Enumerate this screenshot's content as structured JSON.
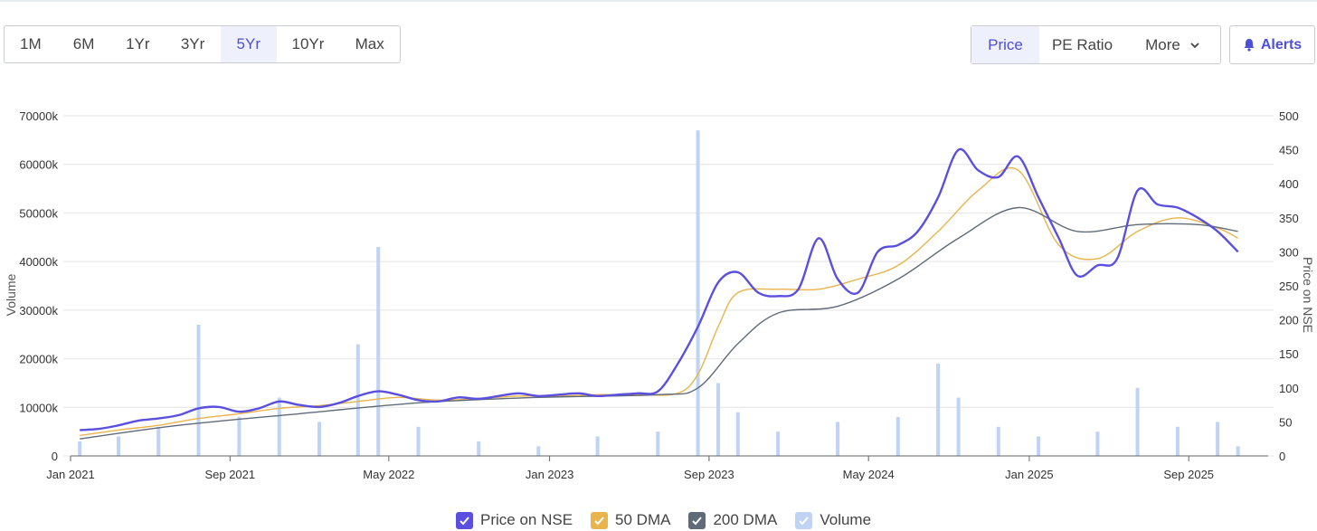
{
  "toolbar": {
    "ranges": [
      {
        "label": "1M",
        "active": false
      },
      {
        "label": "6M",
        "active": false
      },
      {
        "label": "1Yr",
        "active": false
      },
      {
        "label": "3Yr",
        "active": false
      },
      {
        "label": "5Yr",
        "active": true
      },
      {
        "label": "10Yr",
        "active": false
      },
      {
        "label": "Max",
        "active": false
      }
    ],
    "modes": [
      {
        "label": "Price",
        "active": true
      },
      {
        "label": "PE Ratio",
        "active": false
      },
      {
        "label": "More",
        "active": false
      }
    ],
    "alerts_label": "Alerts"
  },
  "legend": [
    {
      "label": "Price on NSE",
      "color": "#5b4fe0",
      "checked": true
    },
    {
      "label": "50 DMA",
      "color": "#e8b44b",
      "checked": true
    },
    {
      "label": "200 DMA",
      "color": "#5f6b79",
      "checked": true
    },
    {
      "label": "Volume",
      "color": "#bfd3f5",
      "checked": true
    }
  ],
  "chart_data": {
    "type": "line",
    "xlabel": "",
    "ylabel_left": "Volume",
    "ylabel_right": "Price on NSE",
    "x_range": [
      "2021-01-01",
      "2025-12-31"
    ],
    "x_ticks": [
      "Jan 2021",
      "Sep 2021",
      "May 2022",
      "Jan 2023",
      "Sep 2023",
      "May 2024",
      "Jan 2025",
      "Sep 2025"
    ],
    "y_left": {
      "min": 0,
      "max": 70000,
      "ticks": [
        "0",
        "10000k",
        "20000k",
        "30000k",
        "40000k",
        "50000k",
        "60000k",
        "70000k"
      ]
    },
    "y_right": {
      "min": 0,
      "max": 500,
      "ticks": [
        "0",
        "50",
        "100",
        "150",
        "200",
        "250",
        "300",
        "350",
        "400",
        "450",
        "500"
      ]
    },
    "grid": true,
    "colors": {
      "price": "#5b4fe0",
      "dma50": "#e8b44b",
      "dma200": "#5f6b79",
      "volume": "#bfd3f5"
    },
    "series": [
      {
        "name": "Price on NSE",
        "axis": "right",
        "x": [
          "2021-01",
          "2021-02",
          "2021-03",
          "2021-04",
          "2021-05",
          "2021-06",
          "2021-07",
          "2021-08",
          "2021-09",
          "2021-10",
          "2021-11",
          "2021-12",
          "2022-01",
          "2022-02",
          "2022-03",
          "2022-04",
          "2022-05",
          "2022-06",
          "2022-07",
          "2022-08",
          "2022-09",
          "2022-10",
          "2022-11",
          "2022-12",
          "2023-01",
          "2023-02",
          "2023-03",
          "2023-04",
          "2023-05",
          "2023-06",
          "2023-07",
          "2023-08",
          "2023-09",
          "2023-10",
          "2023-11",
          "2023-12",
          "2024-01",
          "2024-02",
          "2024-03",
          "2024-04",
          "2024-05",
          "2024-06",
          "2024-07",
          "2024-08",
          "2024-09",
          "2024-10",
          "2024-11",
          "2024-12",
          "2025-01",
          "2025-02",
          "2025-03",
          "2025-04",
          "2025-05",
          "2025-06",
          "2025-07",
          "2025-08",
          "2025-09",
          "2025-10",
          "2025-11"
        ],
        "values": [
          38,
          40,
          45,
          52,
          55,
          60,
          70,
          72,
          65,
          70,
          80,
          75,
          72,
          78,
          88,
          95,
          90,
          82,
          80,
          86,
          84,
          88,
          92,
          88,
          90,
          92,
          88,
          90,
          92,
          95,
          135,
          190,
          255,
          270,
          240,
          235,
          245,
          320,
          260,
          240,
          300,
          310,
          330,
          380,
          450,
          420,
          410,
          440,
          380,
          320,
          265,
          280,
          290,
          390,
          370,
          365,
          350,
          330,
          300
        ],
        "line_style": "solid"
      },
      {
        "name": "50 DMA",
        "axis": "right",
        "x": [
          "2021-01",
          "2021-03",
          "2021-05",
          "2021-07",
          "2021-09",
          "2021-11",
          "2022-01",
          "2022-03",
          "2022-05",
          "2022-07",
          "2022-09",
          "2022-11",
          "2023-01",
          "2023-03",
          "2023-05",
          "2023-07",
          "2023-08",
          "2023-09",
          "2023-10",
          "2023-12",
          "2024-02",
          "2024-04",
          "2024-06",
          "2024-08",
          "2024-10",
          "2024-12",
          "2025-02",
          "2025-04",
          "2025-06",
          "2025-08",
          "2025-10",
          "2025-11"
        ],
        "values": [
          30,
          38,
          45,
          55,
          62,
          70,
          74,
          80,
          86,
          82,
          84,
          88,
          88,
          90,
          90,
          92,
          120,
          190,
          240,
          245,
          245,
          260,
          280,
          330,
          390,
          420,
          310,
          290,
          330,
          350,
          335,
          320
        ],
        "line_style": "solid"
      },
      {
        "name": "200 DMA",
        "axis": "right",
        "x": [
          "2021-01",
          "2021-06",
          "2021-12",
          "2022-06",
          "2022-12",
          "2023-06",
          "2023-08",
          "2023-10",
          "2023-12",
          "2024-03",
          "2024-06",
          "2024-09",
          "2024-12",
          "2025-03",
          "2025-06",
          "2025-09",
          "2025-11"
        ],
        "values": [
          25,
          45,
          62,
          78,
          86,
          90,
          100,
          165,
          210,
          220,
          260,
          320,
          365,
          330,
          340,
          340,
          330
        ],
        "line_style": "solid"
      },
      {
        "name": "Volume",
        "axis": "left",
        "x": [
          "2021-01",
          "2021-03",
          "2021-05",
          "2021-07",
          "2021-09",
          "2021-11",
          "2022-01",
          "2022-03",
          "2022-04",
          "2022-06",
          "2022-09",
          "2022-12",
          "2023-03",
          "2023-06",
          "2023-08",
          "2023-09",
          "2023-10",
          "2023-12",
          "2024-03",
          "2024-06",
          "2024-08",
          "2024-09",
          "2024-11",
          "2025-01",
          "2025-04",
          "2025-06",
          "2025-08",
          "2025-10",
          "2025-11"
        ],
        "values": [
          3000,
          4000,
          6000,
          27000,
          8000,
          12000,
          7000,
          23000,
          43000,
          6000,
          3000,
          2000,
          4000,
          5000,
          67000,
          15000,
          9000,
          5000,
          7000,
          8000,
          19000,
          12000,
          6000,
          4000,
          5000,
          14000,
          6000,
          7000,
          2000
        ],
        "line_style": "bars"
      }
    ]
  }
}
